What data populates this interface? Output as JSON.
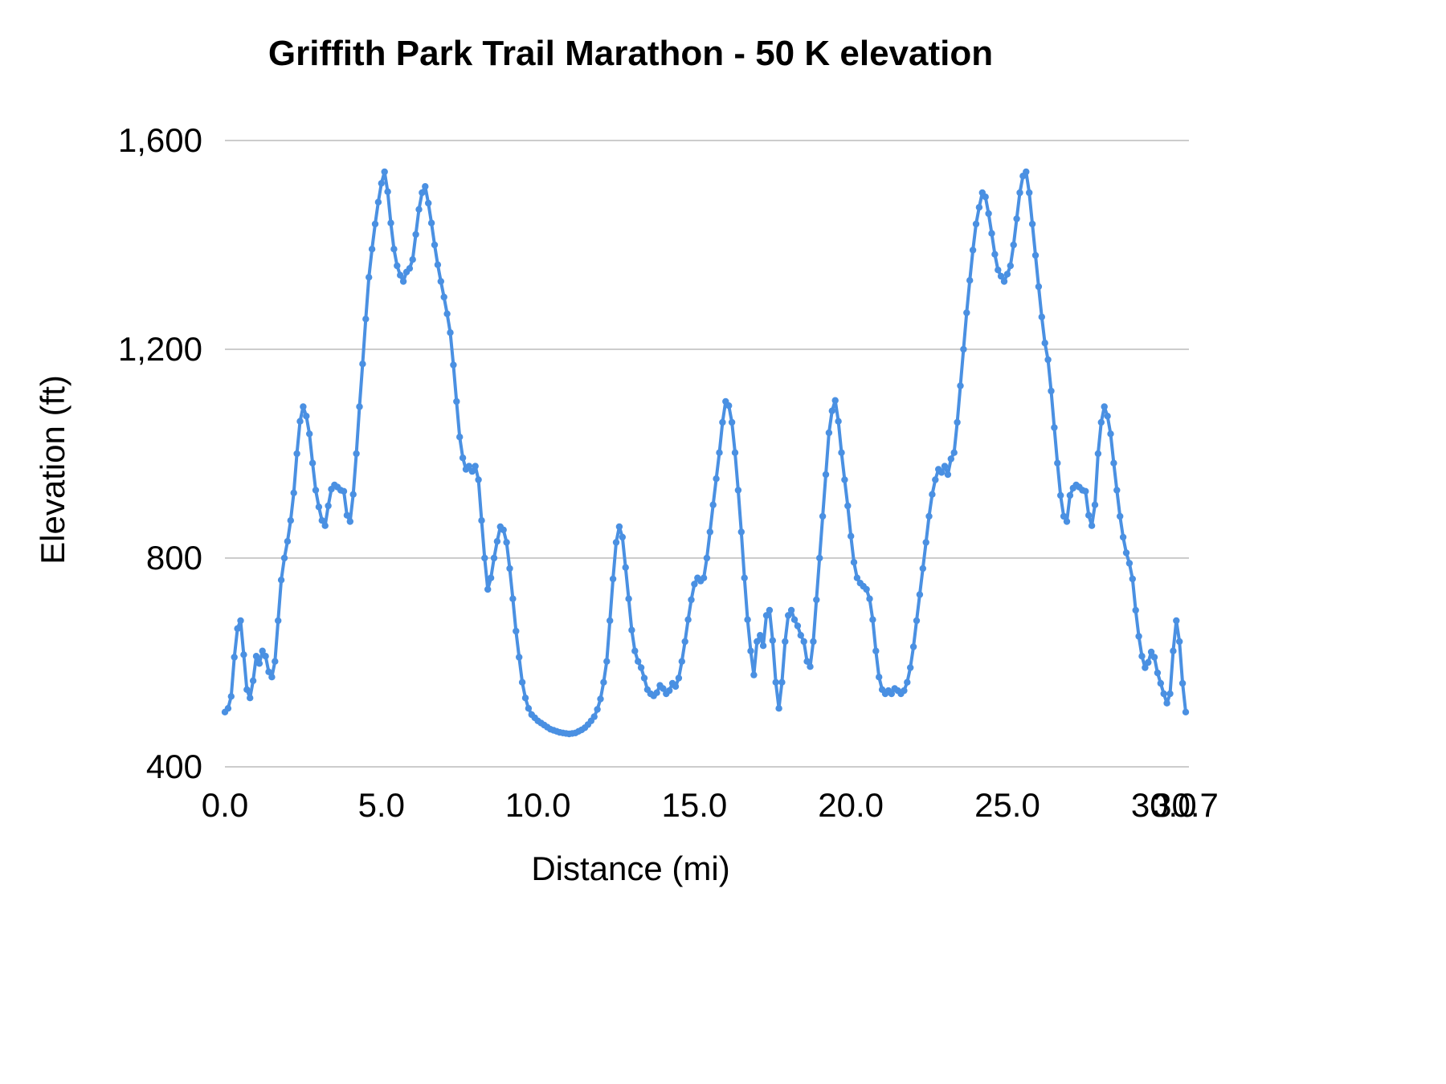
{
  "chart_data": {
    "type": "line",
    "title": "Griffith Park Trail Marathon - 50 K elevation",
    "xlabel": "Distance (mi)",
    "ylabel": "Elevation (ft)",
    "xlim": [
      0,
      30.7
    ],
    "ylim": [
      400,
      1600
    ],
    "grid": true,
    "legend_position": "none",
    "line_color": "#4a90e2",
    "point_color": "#4a90e2",
    "gridline_color": "#cccccc",
    "y_ticks": [
      {
        "value": 400,
        "label": "400"
      },
      {
        "value": 800,
        "label": "800"
      },
      {
        "value": 1200,
        "label": "1,200"
      },
      {
        "value": 1600,
        "label": "1,600"
      }
    ],
    "x_ticks": [
      {
        "value": 0.0,
        "label": "0.0"
      },
      {
        "value": 5.0,
        "label": "5.0"
      },
      {
        "value": 10.0,
        "label": "10.0"
      },
      {
        "value": 15.0,
        "label": "15.0"
      },
      {
        "value": 20.0,
        "label": "20.0"
      },
      {
        "value": 25.0,
        "label": "25.0"
      },
      {
        "value": 30.0,
        "label": "30.0"
      },
      {
        "value": 30.7,
        "label": "30.7"
      }
    ],
    "points": [
      [
        0.0,
        505
      ],
      [
        0.1,
        512
      ],
      [
        0.2,
        535
      ],
      [
        0.3,
        610
      ],
      [
        0.4,
        665
      ],
      [
        0.5,
        680
      ],
      [
        0.6,
        615
      ],
      [
        0.7,
        548
      ],
      [
        0.8,
        532
      ],
      [
        0.9,
        565
      ],
      [
        1.0,
        612
      ],
      [
        1.1,
        598
      ],
      [
        1.2,
        622
      ],
      [
        1.3,
        612
      ],
      [
        1.4,
        582
      ],
      [
        1.5,
        572
      ],
      [
        1.6,
        602
      ],
      [
        1.7,
        680
      ],
      [
        1.8,
        758
      ],
      [
        1.9,
        800
      ],
      [
        2.0,
        832
      ],
      [
        2.1,
        872
      ],
      [
        2.2,
        925
      ],
      [
        2.3,
        1000
      ],
      [
        2.4,
        1062
      ],
      [
        2.5,
        1090
      ],
      [
        2.6,
        1072
      ],
      [
        2.7,
        1038
      ],
      [
        2.8,
        982
      ],
      [
        2.9,
        930
      ],
      [
        3.0,
        898
      ],
      [
        3.1,
        872
      ],
      [
        3.2,
        862
      ],
      [
        3.3,
        900
      ],
      [
        3.4,
        932
      ],
      [
        3.5,
        940
      ],
      [
        3.6,
        936
      ],
      [
        3.7,
        930
      ],
      [
        3.8,
        928
      ],
      [
        3.9,
        882
      ],
      [
        4.0,
        870
      ],
      [
        4.1,
        922
      ],
      [
        4.2,
        1000
      ],
      [
        4.3,
        1090
      ],
      [
        4.4,
        1172
      ],
      [
        4.5,
        1258
      ],
      [
        4.6,
        1338
      ],
      [
        4.7,
        1392
      ],
      [
        4.8,
        1440
      ],
      [
        4.9,
        1482
      ],
      [
        5.0,
        1518
      ],
      [
        5.1,
        1540
      ],
      [
        5.2,
        1502
      ],
      [
        5.3,
        1442
      ],
      [
        5.4,
        1392
      ],
      [
        5.5,
        1360
      ],
      [
        5.6,
        1342
      ],
      [
        5.7,
        1330
      ],
      [
        5.8,
        1348
      ],
      [
        5.9,
        1355
      ],
      [
        6.0,
        1372
      ],
      [
        6.1,
        1420
      ],
      [
        6.2,
        1468
      ],
      [
        6.3,
        1500
      ],
      [
        6.4,
        1512
      ],
      [
        6.5,
        1480
      ],
      [
        6.6,
        1442
      ],
      [
        6.7,
        1400
      ],
      [
        6.8,
        1362
      ],
      [
        6.9,
        1330
      ],
      [
        7.0,
        1300
      ],
      [
        7.1,
        1268
      ],
      [
        7.2,
        1232
      ],
      [
        7.3,
        1170
      ],
      [
        7.4,
        1100
      ],
      [
        7.5,
        1032
      ],
      [
        7.6,
        992
      ],
      [
        7.7,
        970
      ],
      [
        7.8,
        976
      ],
      [
        7.9,
        966
      ],
      [
        8.0,
        976
      ],
      [
        8.1,
        950
      ],
      [
        8.2,
        872
      ],
      [
        8.3,
        800
      ],
      [
        8.4,
        740
      ],
      [
        8.5,
        762
      ],
      [
        8.6,
        800
      ],
      [
        8.7,
        832
      ],
      [
        8.8,
        860
      ],
      [
        8.9,
        854
      ],
      [
        9.0,
        830
      ],
      [
        9.1,
        780
      ],
      [
        9.2,
        722
      ],
      [
        9.3,
        660
      ],
      [
        9.4,
        610
      ],
      [
        9.5,
        562
      ],
      [
        9.6,
        532
      ],
      [
        9.7,
        512
      ],
      [
        9.8,
        500
      ],
      [
        9.9,
        494
      ],
      [
        10.0,
        488
      ],
      [
        10.1,
        484
      ],
      [
        10.2,
        480
      ],
      [
        10.3,
        476
      ],
      [
        10.4,
        472
      ],
      [
        10.5,
        470
      ],
      [
        10.6,
        468
      ],
      [
        10.7,
        466
      ],
      [
        10.8,
        465
      ],
      [
        10.9,
        464
      ],
      [
        11.0,
        463
      ],
      [
        11.1,
        464
      ],
      [
        11.2,
        465
      ],
      [
        11.3,
        468
      ],
      [
        11.4,
        471
      ],
      [
        11.5,
        475
      ],
      [
        11.6,
        481
      ],
      [
        11.7,
        488
      ],
      [
        11.8,
        496
      ],
      [
        11.9,
        510
      ],
      [
        12.0,
        530
      ],
      [
        12.1,
        562
      ],
      [
        12.2,
        602
      ],
      [
        12.3,
        680
      ],
      [
        12.4,
        760
      ],
      [
        12.5,
        830
      ],
      [
        12.6,
        860
      ],
      [
        12.7,
        840
      ],
      [
        12.8,
        782
      ],
      [
        12.9,
        722
      ],
      [
        13.0,
        662
      ],
      [
        13.1,
        622
      ],
      [
        13.2,
        602
      ],
      [
        13.3,
        590
      ],
      [
        13.4,
        570
      ],
      [
        13.5,
        548
      ],
      [
        13.6,
        540
      ],
      [
        13.7,
        536
      ],
      [
        13.8,
        542
      ],
      [
        13.9,
        556
      ],
      [
        14.0,
        550
      ],
      [
        14.1,
        540
      ],
      [
        14.2,
        546
      ],
      [
        14.3,
        560
      ],
      [
        14.4,
        554
      ],
      [
        14.5,
        570
      ],
      [
        14.6,
        602
      ],
      [
        14.7,
        640
      ],
      [
        14.8,
        682
      ],
      [
        14.9,
        720
      ],
      [
        15.0,
        750
      ],
      [
        15.1,
        762
      ],
      [
        15.2,
        756
      ],
      [
        15.3,
        762
      ],
      [
        15.4,
        800
      ],
      [
        15.5,
        850
      ],
      [
        15.6,
        902
      ],
      [
        15.7,
        952
      ],
      [
        15.8,
        1002
      ],
      [
        15.9,
        1060
      ],
      [
        16.0,
        1100
      ],
      [
        16.1,
        1092
      ],
      [
        16.2,
        1060
      ],
      [
        16.3,
        1002
      ],
      [
        16.4,
        930
      ],
      [
        16.5,
        850
      ],
      [
        16.6,
        762
      ],
      [
        16.7,
        682
      ],
      [
        16.8,
        622
      ],
      [
        16.9,
        576
      ],
      [
        17.0,
        640
      ],
      [
        17.1,
        652
      ],
      [
        17.2,
        632
      ],
      [
        17.3,
        690
      ],
      [
        17.4,
        700
      ],
      [
        17.5,
        642
      ],
      [
        17.6,
        562
      ],
      [
        17.7,
        512
      ],
      [
        17.8,
        562
      ],
      [
        17.9,
        640
      ],
      [
        18.0,
        690
      ],
      [
        18.1,
        700
      ],
      [
        18.2,
        682
      ],
      [
        18.3,
        670
      ],
      [
        18.4,
        652
      ],
      [
        18.5,
        640
      ],
      [
        18.6,
        602
      ],
      [
        18.7,
        592
      ],
      [
        18.8,
        640
      ],
      [
        18.9,
        720
      ],
      [
        19.0,
        800
      ],
      [
        19.1,
        880
      ],
      [
        19.2,
        960
      ],
      [
        19.3,
        1040
      ],
      [
        19.4,
        1082
      ],
      [
        19.5,
        1102
      ],
      [
        19.6,
        1062
      ],
      [
        19.7,
        1002
      ],
      [
        19.8,
        950
      ],
      [
        19.9,
        900
      ],
      [
        20.0,
        842
      ],
      [
        20.1,
        792
      ],
      [
        20.2,
        762
      ],
      [
        20.3,
        752
      ],
      [
        20.4,
        746
      ],
      [
        20.5,
        740
      ],
      [
        20.6,
        722
      ],
      [
        20.7,
        682
      ],
      [
        20.8,
        622
      ],
      [
        20.9,
        572
      ],
      [
        21.0,
        548
      ],
      [
        21.1,
        540
      ],
      [
        21.2,
        546
      ],
      [
        21.3,
        540
      ],
      [
        21.4,
        550
      ],
      [
        21.5,
        546
      ],
      [
        21.6,
        540
      ],
      [
        21.7,
        546
      ],
      [
        21.8,
        562
      ],
      [
        21.9,
        590
      ],
      [
        22.0,
        630
      ],
      [
        22.1,
        680
      ],
      [
        22.2,
        730
      ],
      [
        22.3,
        780
      ],
      [
        22.4,
        830
      ],
      [
        22.5,
        880
      ],
      [
        22.6,
        922
      ],
      [
        22.7,
        950
      ],
      [
        22.8,
        970
      ],
      [
        22.9,
        964
      ],
      [
        23.0,
        976
      ],
      [
        23.1,
        960
      ],
      [
        23.2,
        990
      ],
      [
        23.3,
        1002
      ],
      [
        23.4,
        1060
      ],
      [
        23.5,
        1130
      ],
      [
        23.6,
        1200
      ],
      [
        23.7,
        1270
      ],
      [
        23.8,
        1332
      ],
      [
        23.9,
        1390
      ],
      [
        24.0,
        1440
      ],
      [
        24.1,
        1472
      ],
      [
        24.2,
        1500
      ],
      [
        24.3,
        1492
      ],
      [
        24.4,
        1460
      ],
      [
        24.5,
        1422
      ],
      [
        24.6,
        1382
      ],
      [
        24.7,
        1352
      ],
      [
        24.8,
        1340
      ],
      [
        24.9,
        1330
      ],
      [
        25.0,
        1344
      ],
      [
        25.1,
        1360
      ],
      [
        25.2,
        1400
      ],
      [
        25.3,
        1450
      ],
      [
        25.4,
        1500
      ],
      [
        25.5,
        1532
      ],
      [
        25.6,
        1540
      ],
      [
        25.7,
        1500
      ],
      [
        25.8,
        1440
      ],
      [
        25.9,
        1380
      ],
      [
        26.0,
        1320
      ],
      [
        26.1,
        1262
      ],
      [
        26.2,
        1212
      ],
      [
        26.3,
        1180
      ],
      [
        26.4,
        1120
      ],
      [
        26.5,
        1050
      ],
      [
        26.6,
        982
      ],
      [
        26.7,
        920
      ],
      [
        26.8,
        880
      ],
      [
        26.9,
        870
      ],
      [
        27.0,
        920
      ],
      [
        27.1,
        934
      ],
      [
        27.2,
        940
      ],
      [
        27.3,
        936
      ],
      [
        27.4,
        930
      ],
      [
        27.5,
        928
      ],
      [
        27.6,
        882
      ],
      [
        27.7,
        862
      ],
      [
        27.8,
        902
      ],
      [
        27.9,
        1000
      ],
      [
        28.0,
        1060
      ],
      [
        28.1,
        1090
      ],
      [
        28.2,
        1072
      ],
      [
        28.3,
        1038
      ],
      [
        28.4,
        982
      ],
      [
        28.5,
        930
      ],
      [
        28.6,
        880
      ],
      [
        28.7,
        840
      ],
      [
        28.8,
        810
      ],
      [
        28.9,
        790
      ],
      [
        29.0,
        760
      ],
      [
        29.1,
        700
      ],
      [
        29.2,
        650
      ],
      [
        29.3,
        612
      ],
      [
        29.4,
        590
      ],
      [
        29.5,
        600
      ],
      [
        29.6,
        620
      ],
      [
        29.7,
        610
      ],
      [
        29.8,
        580
      ],
      [
        29.9,
        560
      ],
      [
        30.0,
        540
      ],
      [
        30.1,
        522
      ],
      [
        30.2,
        540
      ],
      [
        30.3,
        622
      ],
      [
        30.4,
        680
      ],
      [
        30.5,
        640
      ],
      [
        30.6,
        560
      ],
      [
        30.7,
        505
      ]
    ]
  }
}
